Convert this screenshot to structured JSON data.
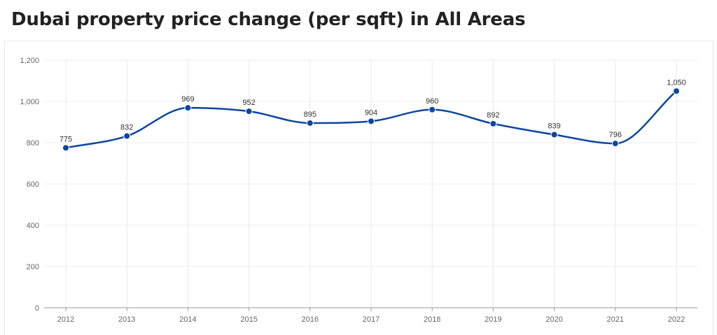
{
  "header": {
    "title": "Dubai property price change (per sqft) in All Areas"
  },
  "chart_data": {
    "type": "line",
    "title": "Dubai property price change (per sqft) in All Areas",
    "xlabel": "",
    "ylabel": "",
    "x": [
      "2012",
      "2013",
      "2014",
      "2015",
      "2016",
      "2017",
      "2018",
      "2019",
      "2020",
      "2021",
      "2022"
    ],
    "series": [
      {
        "values": [
          775,
          832,
          969,
          952,
          895,
          904,
          960,
          892,
          839,
          796,
          1050
        ],
        "labels": [
          "775",
          "832",
          "969",
          "952",
          "895",
          "904",
          "960",
          "892",
          "839",
          "796",
          "1,050"
        ],
        "color": "#0d47a1"
      }
    ],
    "ylim": [
      0,
      1200
    ],
    "yticks": [
      0,
      200,
      400,
      600,
      800,
      1000,
      1200
    ],
    "ytick_labels": [
      "0",
      "200",
      "400",
      "600",
      "800",
      "1,000",
      "1,200"
    ],
    "grid": true,
    "smooth": true
  }
}
